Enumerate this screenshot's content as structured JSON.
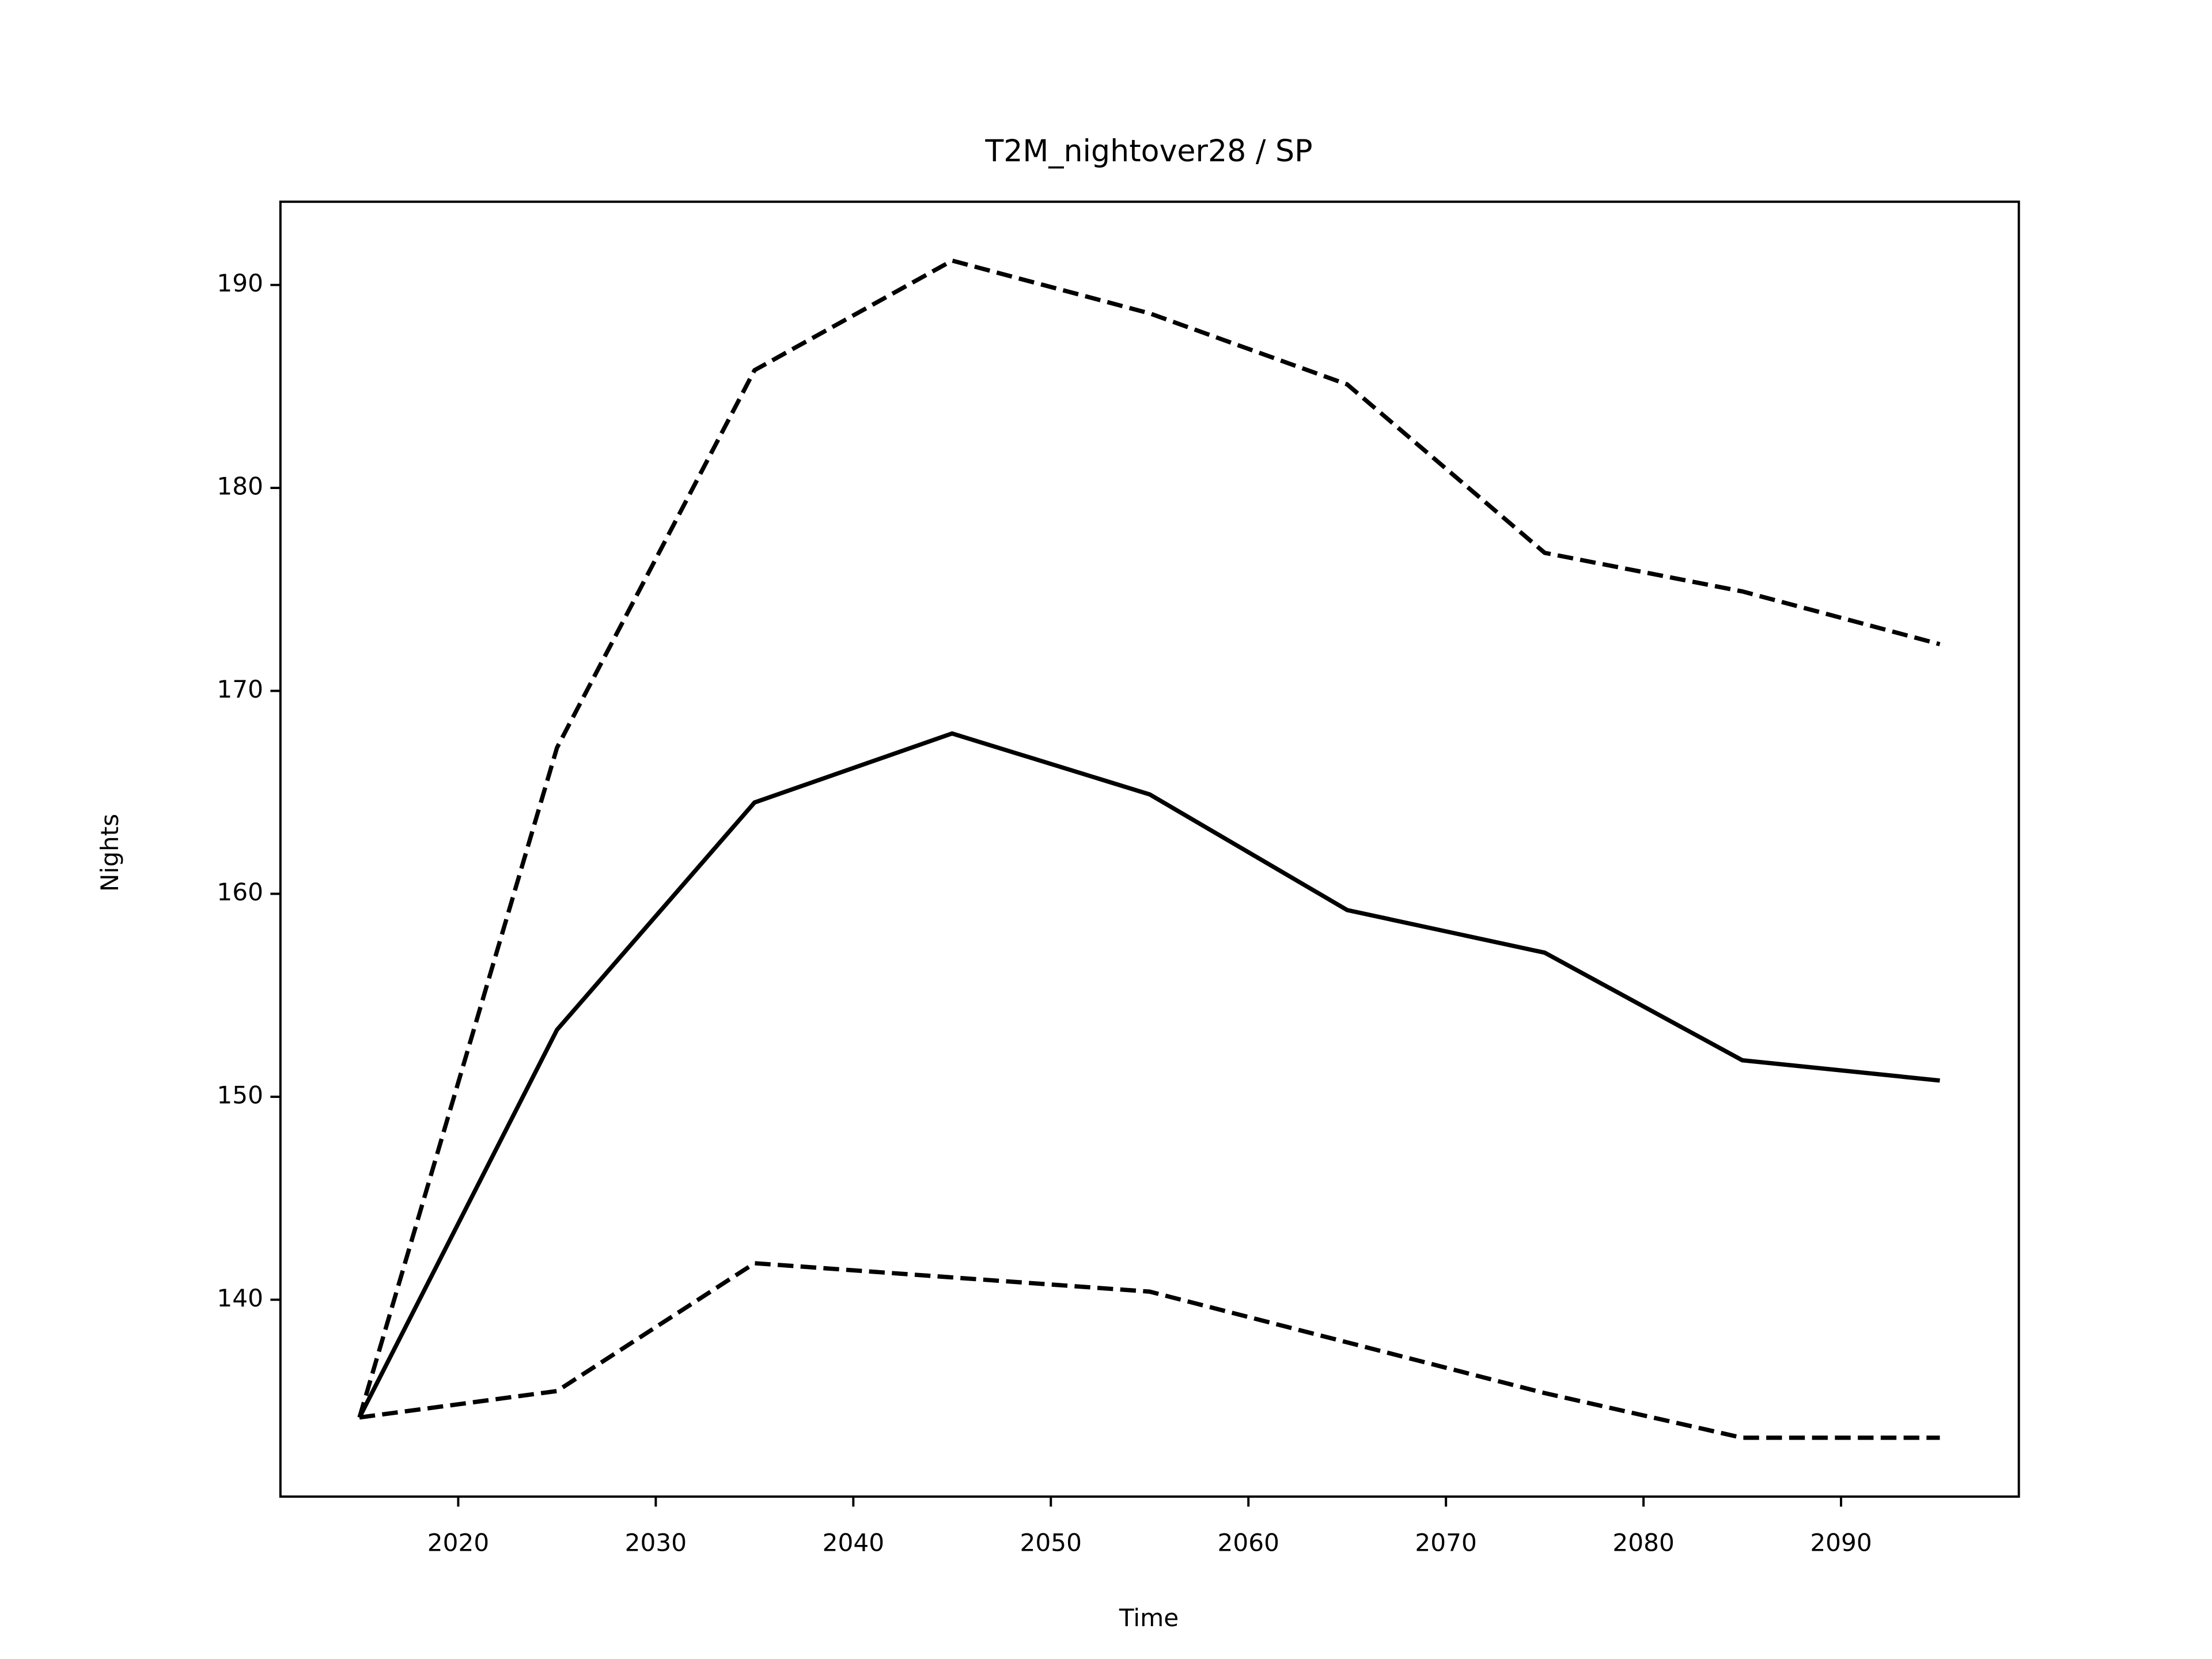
{
  "chart_data": {
    "type": "line",
    "title": "T2M_nightover28 / SP",
    "xlabel": "Time",
    "ylabel": "Nights",
    "x": [
      2015,
      2025,
      2035,
      2045,
      2055,
      2065,
      2075,
      2085,
      2095
    ],
    "series": [
      {
        "color": "#000000",
        "linestyle": "solid",
        "values": [
          134.2,
          153.3,
          164.5,
          167.9,
          164.9,
          159.2,
          157.1,
          151.8,
          150.8
        ]
      },
      {
        "color": "#000000",
        "linestyle": "dashed",
        "values": [
          134.2,
          167.2,
          185.8,
          191.2,
          188.6,
          185.1,
          176.8,
          174.9,
          172.3
        ]
      },
      {
        "color": "#000000",
        "linestyle": "dashed",
        "values": [
          134.2,
          135.5,
          141.8,
          141.1,
          140.4,
          137.9,
          135.4,
          133.2,
          133.2
        ]
      }
    ],
    "xlim": [
      2011,
      2099
    ],
    "xticks": [
      2020,
      2030,
      2040,
      2050,
      2060,
      2070,
      2080,
      2090
    ],
    "ylim": [
      130.3,
      194.1
    ],
    "yticks": [
      140,
      150,
      160,
      170,
      180,
      190
    ],
    "grid": false
  }
}
